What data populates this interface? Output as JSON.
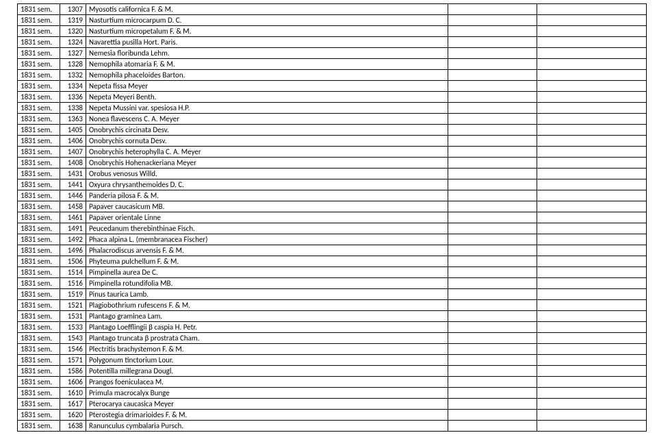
{
  "table": {
    "rows": [
      {
        "sem": "1831 sem.",
        "num": "1307",
        "name": "Myosotis californica F. & M."
      },
      {
        "sem": "1831 sem.",
        "num": "1319",
        "name": "Nasturtium microcarpum D. C."
      },
      {
        "sem": "1831 sem.",
        "num": "1320",
        "name": "Nasturtium micropetalum F. & M."
      },
      {
        "sem": "1831 sem.",
        "num": "1324",
        "name": "Navarettia pusilla Hort. Paris."
      },
      {
        "sem": "1831 sem.",
        "num": "1327",
        "name": "Nemesia floribunda Lehm."
      },
      {
        "sem": "1831 sem.",
        "num": "1328",
        "name": "Nemophila atomaria F. & M."
      },
      {
        "sem": "1831 sem.",
        "num": "1332",
        "name": "Nemophila phaceloides Barton."
      },
      {
        "sem": "1831 sem.",
        "num": "1334",
        "name": "Nepeta fissa Meyer"
      },
      {
        "sem": "1831 sem.",
        "num": "1336",
        "name": "Nepeta Meyeri Benth."
      },
      {
        "sem": "1831 sem.",
        "num": "1338",
        "name": "Nepeta Mussini var. spesiosa H.P."
      },
      {
        "sem": "1831 sem.",
        "num": "1363",
        "name": "Nonea flavescens C. A. Meyer"
      },
      {
        "sem": "1831 sem.",
        "num": "1405",
        "name": "Onobrychis circinata Desv."
      },
      {
        "sem": "1831 sem.",
        "num": "1406",
        "name": "Onobrychis cornuta Desv."
      },
      {
        "sem": "1831 sem.",
        "num": "1407",
        "name": "Onobrychis heterophylla C. A. Meyer"
      },
      {
        "sem": "1831 sem.",
        "num": "1408",
        "name": "Onobrychis Hohenackeriana Meyer"
      },
      {
        "sem": "1831 sem.",
        "num": "1431",
        "name": "Orobus venosus Willd."
      },
      {
        "sem": "1831 sem.",
        "num": "1441",
        "name": "Oxyura chrysanthemoides D. C."
      },
      {
        "sem": "1831 sem.",
        "num": "1446",
        "name": "Panderia pilosa F. & M."
      },
      {
        "sem": "1831 sem.",
        "num": "1458",
        "name": "Papaver caucasicum MB."
      },
      {
        "sem": "1831 sem.",
        "num": "1461",
        "name": "Papaver orientale Linne"
      },
      {
        "sem": "1831 sem.",
        "num": "1491",
        "name": "Peucedanum therebinthinae Fisch."
      },
      {
        "sem": "1831 sem.",
        "num": "1492",
        "name": "Phaca alpina L. (membranacea Fischer)"
      },
      {
        "sem": "1831 sem.",
        "num": "1496",
        "name": "Phalacrodiscus arvensis F. & M."
      },
      {
        "sem": "1831 sem.",
        "num": "1506",
        "name": "Phyteuma pulchellum F. & M."
      },
      {
        "sem": "1831 sem.",
        "num": "1514",
        "name": "Pimpinella aurea De C."
      },
      {
        "sem": "1831 sem.",
        "num": "1516",
        "name": "Pimpinella rotundifolia MB."
      },
      {
        "sem": "1831 sem.",
        "num": "1519",
        "name": "Pinus taurica Lamb."
      },
      {
        "sem": "1831 sem.",
        "num": "1521",
        "name": "Plagiobothrium rufescens F. & M."
      },
      {
        "sem": "1831 sem.",
        "num": "1531",
        "name": "Plantago graminea Lam."
      },
      {
        "sem": "1831 sem.",
        "num": "1533",
        "name": "Plantago Loefflingii β caspia H. Petr."
      },
      {
        "sem": "1831 sem.",
        "num": "1543",
        "name": "Plantago truncata β prostrata Cham."
      },
      {
        "sem": "1831 sem.",
        "num": "1546",
        "name": "Plectritis brachystemon F. & M."
      },
      {
        "sem": "1831 sem.",
        "num": "1571",
        "name": "Polygonum tinctorium Lour."
      },
      {
        "sem": "1831 sem.",
        "num": "1586",
        "name": "Potentilla millegrana Dougl."
      },
      {
        "sem": "1831 sem.",
        "num": "1606",
        "name": "Prangos foeniculacea M."
      },
      {
        "sem": "1831 sem.",
        "num": "1610",
        "name": "Primula macrocalyx Bunge"
      },
      {
        "sem": "1831 sem.",
        "num": "1617",
        "name": "Pterocarya caucasica Meyer"
      },
      {
        "sem": "1831 sem.",
        "num": "1620",
        "name": "Pterostegia drimarioides F. & M."
      },
      {
        "sem": "1831 sem.",
        "num": "1638",
        "name": "Ranunculus cymbalaria Pursch."
      }
    ]
  }
}
